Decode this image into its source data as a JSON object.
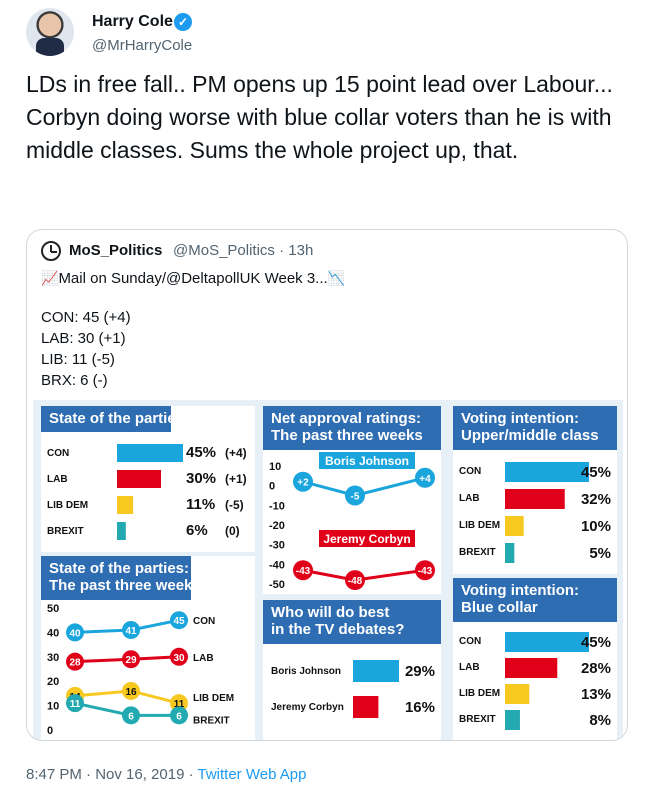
{
  "author": {
    "name": "Harry Cole",
    "handle": "@MrHarryCole"
  },
  "tweet": {
    "text": "LDs in free fall.. PM opens up 15 point lead over Labour... Corbyn doing worse with blue collar voters than he is with middle classes. Sums the whole project up, that."
  },
  "quote": {
    "name": "MoS_Politics",
    "handle": "@MoS_Politics",
    "time": "· 13h",
    "line1": "Mail on Sunday/@DeltapollUK Week 3...",
    "lines": [
      "CON: 45 (+4)",
      "LAB: 30 (+1)",
      "LIB: 11 (-5)",
      "BRX: 6 (-)"
    ]
  },
  "footer": {
    "time": "8:47 PM · Nov 16, 2019",
    "sep": " · ",
    "app": "Twitter Web App"
  },
  "colors": {
    "con": "#1aa6dd",
    "lab": "#e1001a",
    "lib": "#f7c81f",
    "brx": "#23a9b0",
    "header": "#2f6db3"
  },
  "chart_data": [
    {
      "type": "bar",
      "title": "State of the parties",
      "categories": [
        "CON",
        "LAB",
        "LIB DEM",
        "BREXIT"
      ],
      "values": [
        45,
        30,
        11,
        6
      ],
      "value_labels": [
        "45%",
        "30%",
        "11%",
        "6%"
      ],
      "changes": [
        "(+4)",
        "(+1)",
        "(-5)",
        "(0)"
      ]
    },
    {
      "type": "line",
      "title": "Net approval ratings:",
      "subtitle": "The past three weeks",
      "ylim": [
        -50,
        10
      ],
      "yticks": [
        "10",
        "0",
        "-10",
        "-20",
        "-30",
        "-40",
        "-50"
      ],
      "series": [
        {
          "name": "Boris Johnson",
          "values": [
            2,
            -5,
            4
          ],
          "labels": [
            "+2",
            "-5",
            "+4"
          ]
        },
        {
          "name": "Jeremy Corbyn",
          "values": [
            -43,
            -48,
            -43
          ],
          "labels": [
            "-43",
            "-48",
            "-43"
          ]
        }
      ]
    },
    {
      "type": "bar",
      "title": "Voting intention:",
      "subtitle": "Upper/middle class",
      "categories": [
        "CON",
        "LAB",
        "LIB DEM",
        "BREXIT"
      ],
      "values": [
        45,
        32,
        10,
        5
      ],
      "value_labels": [
        "45%",
        "32%",
        "10%",
        "5%"
      ]
    },
    {
      "type": "line",
      "title": "State of the parties:",
      "subtitle": "The past three weeks",
      "ylim": [
        0,
        50
      ],
      "yticks": [
        "50",
        "40",
        "30",
        "20",
        "10",
        "0"
      ],
      "series": [
        {
          "name": "CON",
          "values": [
            40,
            41,
            45
          ],
          "labels": [
            "40",
            "41",
            "45"
          ]
        },
        {
          "name": "LAB",
          "values": [
            28,
            29,
            30
          ],
          "labels": [
            "28",
            "29",
            "30"
          ]
        },
        {
          "name": "LIB DEM",
          "values": [
            14,
            16,
            11
          ],
          "labels": [
            "14",
            "16",
            "11"
          ]
        },
        {
          "name": "BREXIT",
          "values": [
            11,
            6,
            6
          ],
          "labels": [
            "11",
            "6",
            "6"
          ]
        }
      ]
    },
    {
      "type": "bar",
      "title": "Who will do best",
      "subtitle": "in the TV debates?",
      "categories": [
        "Boris Johnson",
        "Jeremy Corbyn"
      ],
      "values": [
        29,
        16
      ],
      "value_labels": [
        "29%",
        "16%"
      ]
    },
    {
      "type": "bar",
      "title": "Voting intention:",
      "subtitle": "Blue collar",
      "categories": [
        "CON",
        "LAB",
        "LIB DEM",
        "BREXIT"
      ],
      "values": [
        45,
        28,
        13,
        8
      ],
      "value_labels": [
        "45%",
        "28%",
        "13%",
        "8%"
      ]
    }
  ]
}
